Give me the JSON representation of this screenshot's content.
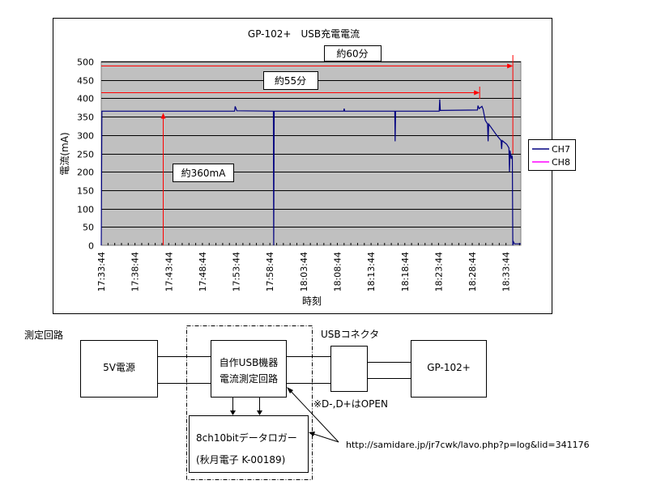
{
  "chart_data": {
    "type": "line",
    "title": "GP-102+　USB充電電流",
    "xlabel": "時刻",
    "ylabel": "電流(mA)",
    "ylim": [
      0,
      500
    ],
    "yticks": [
      0,
      50,
      100,
      150,
      200,
      250,
      300,
      350,
      400,
      450,
      500
    ],
    "xticks": [
      "17:33:44",
      "17:38:44",
      "17:43:44",
      "17:48:44",
      "17:53:44",
      "17:58:44",
      "18:03:44",
      "18:08:44",
      "18:13:44",
      "18:18:44",
      "18:23:44",
      "18:28:44",
      "18:33:44"
    ],
    "xlim": [
      "17:33:44",
      "18:35:56"
    ],
    "grid": true,
    "plot_background": "#c0c0c0",
    "legend_position": "right",
    "series": [
      {
        "name": "CH7",
        "color": "#000080",
        "points": [
          [
            "17:33:44",
            0
          ],
          [
            "17:33:50",
            365
          ],
          [
            "17:53:30",
            365
          ],
          [
            "17:53:35",
            378
          ],
          [
            "17:53:50",
            366
          ],
          [
            "17:59:15",
            365
          ],
          [
            "17:59:18",
            0
          ],
          [
            "17:59:22",
            365
          ],
          [
            "18:09:40",
            365
          ],
          [
            "18:09:45",
            372
          ],
          [
            "18:09:50",
            365
          ],
          [
            "18:17:15",
            365
          ],
          [
            "18:17:18",
            283
          ],
          [
            "18:17:22",
            365
          ],
          [
            "18:23:50",
            365
          ],
          [
            "18:23:55",
            397
          ],
          [
            "18:24:00",
            367
          ],
          [
            "18:29:30",
            368
          ],
          [
            "18:29:35",
            380
          ],
          [
            "18:29:45",
            372
          ],
          [
            "18:30:10",
            378
          ],
          [
            "18:30:20",
            370
          ],
          [
            "18:30:40",
            340
          ],
          [
            "18:31:00",
            330
          ],
          [
            "18:31:05",
            283
          ],
          [
            "18:31:10",
            330
          ],
          [
            "18:32:20",
            300
          ],
          [
            "18:33:00",
            285
          ],
          [
            "18:33:05",
            262
          ],
          [
            "18:33:10",
            285
          ],
          [
            "18:33:50",
            275
          ],
          [
            "18:34:10",
            265
          ],
          [
            "18:34:15",
            200
          ],
          [
            "18:34:20",
            258
          ],
          [
            "18:34:30",
            235
          ],
          [
            "18:34:35",
            245
          ],
          [
            "18:34:40",
            240
          ],
          [
            "18:34:45",
            0
          ],
          [
            "18:34:50",
            10
          ],
          [
            "18:35:00",
            4
          ],
          [
            "18:35:56",
            4
          ]
        ]
      },
      {
        "name": "CH8",
        "color": "#ff00ff",
        "points": []
      }
    ],
    "annotations": [
      {
        "label": "約60分",
        "from": "17:33:44",
        "to": "18:34:45"
      },
      {
        "label": "約55分",
        "from": "17:33:44",
        "to": "18:29:50"
      },
      {
        "label": "約360mA",
        "at": "17:42:50",
        "value": 360
      }
    ],
    "annotation_color": "#ff0000"
  },
  "diagram": {
    "title": "測定回路",
    "power_supply": "5V電源",
    "measure_line1": "自作USB機器",
    "measure_line2": "電流測定回路",
    "connector_label": "USBコネクタ",
    "device": "GP-102+",
    "note": "※D-,D+はOPEN",
    "logger_line1": "8ch10bitデータロガー",
    "logger_line2": "(秋月電子 K-00189)",
    "url": "http://samidare.jp/jr7cwk/lavo.php?p=log&lid=341176"
  }
}
